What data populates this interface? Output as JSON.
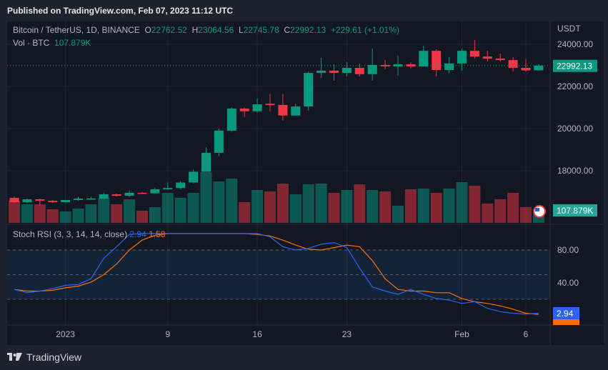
{
  "header": {
    "published": "Published on TradingView.com, Feb 07, 2023 11:12 UTC"
  },
  "legend": {
    "symbol": "Bitcoin / TetherUS, 1D, BINANCE",
    "o_label": "O",
    "o": "22762.52",
    "h_label": "H",
    "h": "23064.56",
    "l_label": "L",
    "l": "22745.78",
    "c_label": "C",
    "c": "22992.13",
    "change": "+229.61 (+1.01%)",
    "vol_label": "Vol · BTC",
    "vol": "107.879K"
  },
  "price_axis": {
    "currency": "USDT",
    "ticks": [
      "24000.00",
      "22000.00",
      "20000.00",
      "18000.00"
    ],
    "tick_values": [
      24000,
      22000,
      20000,
      18000
    ],
    "last_price": "22992.13",
    "last_volume": "107.879K"
  },
  "stoch": {
    "title": "Stoch RSI (3, 3, 14, 14, close)",
    "k_value": "2.94",
    "d_value": "1.58",
    "ticks": [
      "80.00",
      "40.00"
    ],
    "k": [
      32,
      28,
      30,
      33,
      37,
      38,
      45,
      70,
      84,
      99,
      100,
      100,
      100,
      100,
      100,
      100,
      100,
      100,
      100,
      100,
      96,
      84,
      80,
      82,
      87,
      89,
      83,
      58,
      35,
      30,
      26,
      32,
      26,
      21,
      19,
      15,
      17,
      9,
      5,
      3,
      2,
      2.94
    ],
    "d": [
      32,
      30,
      30,
      31,
      34,
      36,
      41,
      50,
      63,
      80,
      92,
      98,
      100,
      100,
      100,
      100,
      100,
      100,
      100,
      99,
      97,
      92,
      86,
      81,
      80,
      83,
      86,
      84,
      67,
      45,
      32,
      30,
      30,
      28,
      28,
      21,
      17,
      15,
      12,
      8,
      3,
      1.58
    ]
  },
  "time_axis": [
    {
      "label": "2023",
      "index": 4
    },
    {
      "label": "9",
      "index": 12
    },
    {
      "label": "16",
      "index": 19
    },
    {
      "label": "23",
      "index": 26
    },
    {
      "label": "Feb",
      "index": 35
    },
    {
      "label": "6",
      "index": 40
    }
  ],
  "colors": {
    "up": "#089981",
    "down": "#f23645",
    "k": "#2962ff",
    "d": "#ff6d00"
  },
  "chart_data": {
    "type": "candlestick",
    "ohlc": [
      [
        16711,
        16780,
        16474,
        16508
      ],
      [
        16508,
        16678,
        16474,
        16644
      ],
      [
        16644,
        16678,
        16339,
        16576
      ],
      [
        16576,
        16610,
        16474,
        16508
      ],
      [
        16508,
        16620,
        16500,
        16610
      ],
      [
        16610,
        16750,
        16570,
        16678
      ],
      [
        16660,
        16760,
        16620,
        16680
      ],
      [
        16678,
        16950,
        16650,
        16880
      ],
      [
        16880,
        16920,
        16770,
        16810
      ],
      [
        16810,
        17060,
        16740,
        16950
      ],
      [
        16950,
        16990,
        16910,
        16930
      ],
      [
        16930,
        17200,
        16920,
        17120
      ],
      [
        17120,
        17440,
        17090,
        17180
      ],
      [
        17180,
        17500,
        17120,
        17440
      ],
      [
        17440,
        18050,
        17390,
        17950
      ],
      [
        17950,
        19100,
        17950,
        18850
      ],
      [
        18850,
        20000,
        18700,
        19900
      ],
      [
        19900,
        21000,
        19850,
        20950
      ],
      [
        20950,
        21000,
        20550,
        20820
      ],
      [
        20820,
        21440,
        20750,
        21150
      ],
      [
        21180,
        21640,
        20820,
        21120
      ],
      [
        21120,
        21640,
        20380,
        20620
      ],
      [
        20620,
        21180,
        20620,
        21050
      ],
      [
        21050,
        22710,
        20850,
        22640
      ],
      [
        22640,
        23360,
        22400,
        22750
      ],
      [
        22750,
        23050,
        22270,
        22640
      ],
      [
        22640,
        23150,
        22470,
        22880
      ],
      [
        22880,
        23080,
        22470,
        22580
      ],
      [
        22580,
        23800,
        22270,
        23020
      ],
      [
        23020,
        23250,
        22810,
        22950
      ],
      [
        22950,
        23460,
        22510,
        23050
      ],
      [
        23050,
        23150,
        22850,
        22950
      ],
      [
        22950,
        23930,
        22950,
        23690
      ],
      [
        23690,
        23760,
        22480,
        22780
      ],
      [
        22780,
        23390,
        22610,
        23090
      ],
      [
        23090,
        23800,
        22750,
        23690
      ],
      [
        23690,
        24200,
        23320,
        23420
      ],
      [
        23420,
        23690,
        23180,
        23320
      ],
      [
        23320,
        23560,
        23180,
        23250
      ],
      [
        23250,
        23390,
        22710,
        22880
      ],
      [
        22880,
        23280,
        22710,
        22760
      ],
      [
        22762.52,
        23064.56,
        22745.78,
        22992.13
      ]
    ],
    "volume_k": [
      279,
      234,
      234,
      171,
      144,
      180,
      234,
      315,
      234,
      297,
      153,
      198,
      378,
      315,
      378,
      639,
      522,
      558,
      261,
      414,
      396,
      495,
      360,
      486,
      495,
      378,
      414,
      486,
      414,
      396,
      216,
      423,
      432,
      378,
      432,
      513,
      468,
      243,
      297,
      378,
      200,
      107.879
    ],
    "ylim": [
      15900,
      24700
    ]
  }
}
